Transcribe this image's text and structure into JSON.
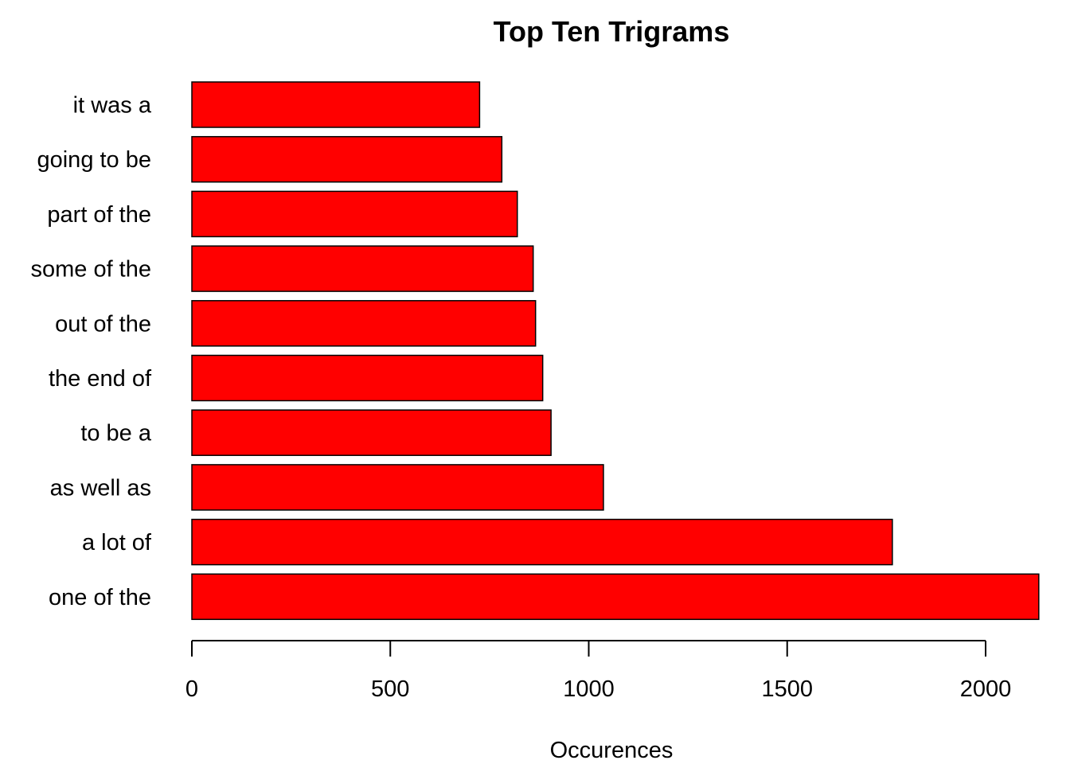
{
  "chart_data": {
    "type": "bar",
    "orientation": "horizontal",
    "title": "Top Ten Trigrams",
    "xlabel": "Occurences",
    "ylabel": "",
    "categories": [
      "it was a",
      "going to be",
      "part of the",
      "some of the",
      "out of the",
      "the end of",
      "to be a",
      "as well as",
      "a lot of",
      "one of the"
    ],
    "values": [
      725,
      781,
      820,
      860,
      866,
      884,
      905,
      1037,
      1765,
      2134
    ],
    "xlim": [
      0,
      2134
    ],
    "xticks": [
      0,
      500,
      1000,
      1500,
      2000
    ],
    "xtick_labels": [
      "0",
      "500",
      "1000",
      "1500",
      "2000"
    ],
    "bar_color": "#ff0000",
    "grid": false,
    "legend": "none"
  }
}
